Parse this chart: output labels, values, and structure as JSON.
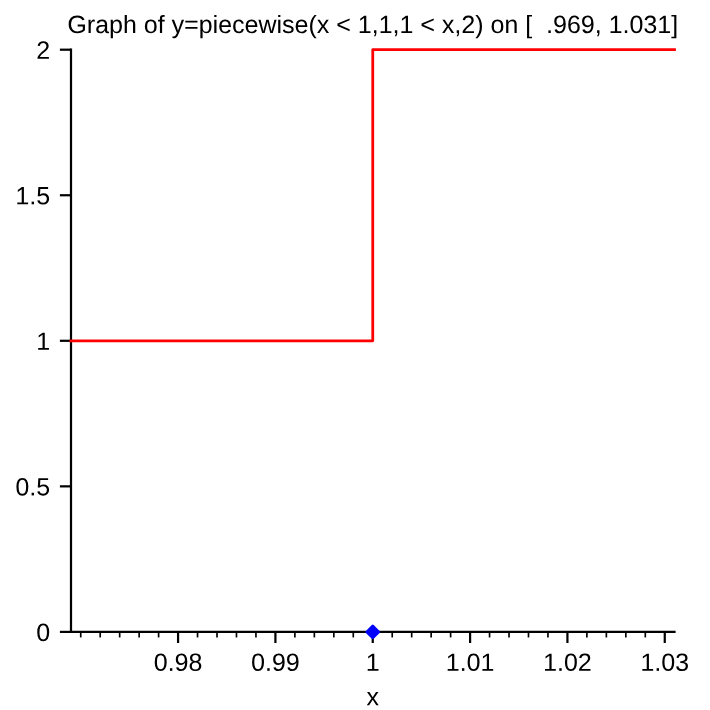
{
  "chart_data": {
    "type": "line",
    "title": "Graph of y=piecewise(x < 1,1,1 < x,2) on [  .969, 1.031]",
    "xlabel": "x",
    "series": [
      {
        "color": "#ff0000",
        "x": [
          0.969,
          1,
          1,
          1.031
        ],
        "values": [
          1,
          1,
          2,
          2
        ]
      },
      {
        "type": "scatter",
        "color": "#0000ff",
        "x": [
          1
        ],
        "values": [
          0
        ],
        "marker": "diamond"
      }
    ],
    "xlim": [
      0.969,
      1.031
    ],
    "xticks": [
      0.98,
      0.99,
      1,
      1.01,
      1.02,
      1.03
    ],
    "ylim": [
      0,
      2
    ],
    "yticks": [
      0,
      0.5,
      1,
      1.5,
      2
    ],
    "grid": false,
    "legend": false
  }
}
